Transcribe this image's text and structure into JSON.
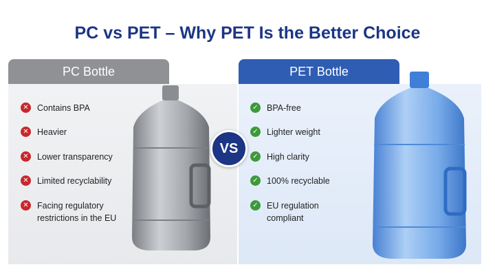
{
  "title": "PC vs PET – Why PET Is the Better Choice",
  "left_panel": {
    "header": "PC Bottle",
    "items": [
      "Contains BPA",
      "Heavier",
      "Lower transparency",
      "Limited recyclability",
      "Facing regulatory restrictions in the EU"
    ]
  },
  "vs_label": "VS",
  "right_panel": {
    "header": "PET Bottle",
    "items": [
      "BPA-free",
      "Lighter weight",
      "High clarity",
      "100% recyclable",
      "EU regulation compliant"
    ]
  }
}
